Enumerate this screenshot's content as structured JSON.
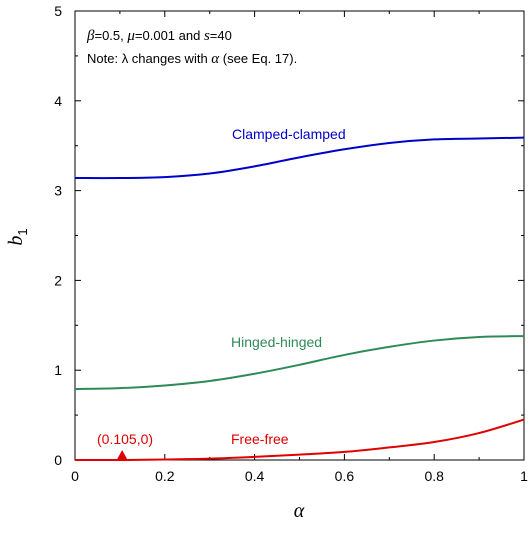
{
  "chart_data": {
    "type": "line",
    "xlabel": "α",
    "ylabel_main": "b",
    "ylabel_sub": "1",
    "xlim": [
      0,
      1
    ],
    "ylim": [
      0,
      5
    ],
    "xticks": [
      0,
      0.2,
      0.4,
      0.6,
      0.8,
      1
    ],
    "yticks": [
      0,
      1,
      2,
      3,
      4,
      5
    ],
    "xtick_labels": [
      "0",
      "0.2",
      "0.4",
      "0.6",
      "0.8",
      "1"
    ],
    "ytick_labels": [
      "0",
      "1",
      "2",
      "3",
      "4",
      "5"
    ],
    "grid": false,
    "note_line1": {
      "beta_sym": "β",
      "beta_val": "=0.5, ",
      "mu_sym": "μ",
      "mu_val": "=0.001 and ",
      "s_sym": "s",
      "s_val": "=40"
    },
    "note_line2": {
      "prefix": "Note: ",
      "lambda_sym": "λ",
      "middle": " changes with ",
      "alpha_sym": "α",
      "suffix": " (see Eq. 17)."
    },
    "series": [
      {
        "name": "Clamped-clamped",
        "color": "#0000c8",
        "x": [
          0,
          0.1,
          0.2,
          0.3,
          0.4,
          0.5,
          0.6,
          0.7,
          0.8,
          0.9,
          1.0
        ],
        "y": [
          3.14,
          3.14,
          3.15,
          3.19,
          3.27,
          3.37,
          3.46,
          3.53,
          3.57,
          3.58,
          3.59
        ]
      },
      {
        "name": "Hinged-hinged",
        "color": "#2e8b57",
        "x": [
          0,
          0.1,
          0.2,
          0.3,
          0.4,
          0.5,
          0.6,
          0.7,
          0.8,
          0.9,
          1.0
        ],
        "y": [
          0.79,
          0.8,
          0.83,
          0.88,
          0.96,
          1.06,
          1.17,
          1.26,
          1.33,
          1.37,
          1.38
        ]
      },
      {
        "name": "Free-free",
        "color": "#e00000",
        "x": [
          0,
          0.105,
          0.2,
          0.3,
          0.4,
          0.5,
          0.6,
          0.7,
          0.8,
          0.9,
          1.0
        ],
        "y": [
          0,
          0,
          0.005,
          0.015,
          0.035,
          0.06,
          0.09,
          0.14,
          0.2,
          0.3,
          0.45
        ]
      }
    ],
    "marker": {
      "x": 0.105,
      "y": 0,
      "label": "(0.105,0)",
      "color": "#e00000",
      "shape": "triangle"
    }
  }
}
